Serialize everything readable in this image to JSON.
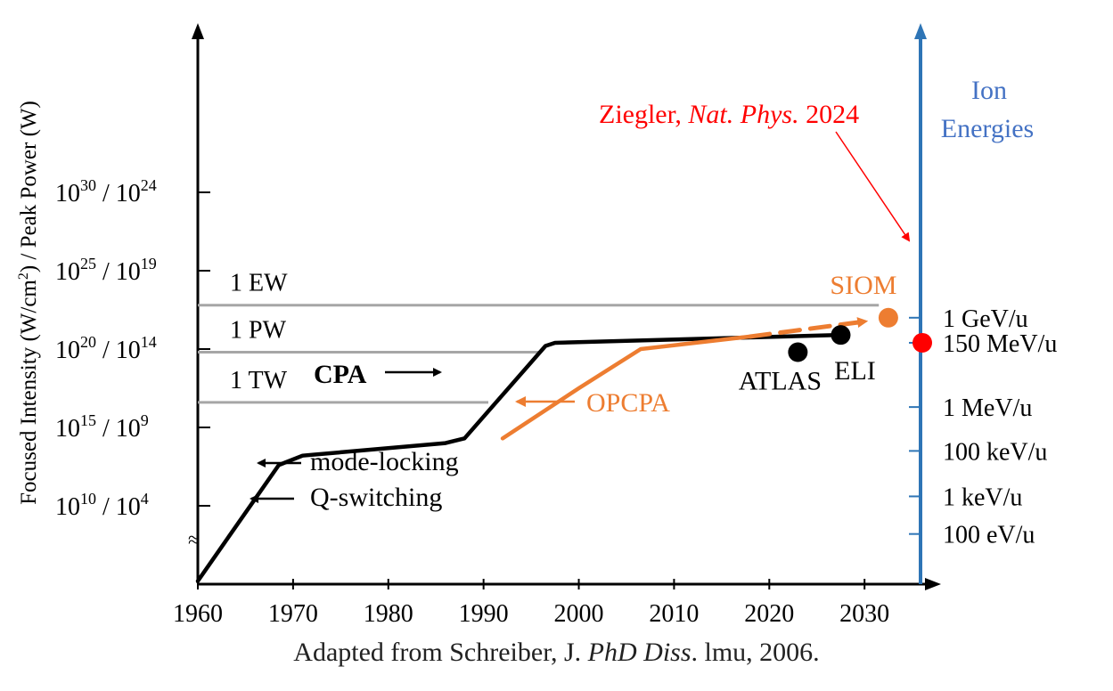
{
  "chart_data": {
    "type": "line",
    "xlim": [
      1960,
      2037
    ],
    "x_ticks": [
      1960,
      1970,
      1980,
      1990,
      2000,
      2010,
      2020,
      2030
    ],
    "ylim": [
      0,
      35
    ],
    "y_ticks": [
      {
        "y": 5,
        "label_base": "10",
        "label_exp": "10",
        "label_sep": " / ",
        "label_base2": "10",
        "label_exp2": "4"
      },
      {
        "y": 10,
        "label_base": "10",
        "label_exp": "15",
        "label_sep": " / ",
        "label_base2": "10",
        "label_exp2": "9"
      },
      {
        "y": 15,
        "label_base": "10",
        "label_exp": "20",
        "label_sep": " / ",
        "label_base2": "10",
        "label_exp2": "14"
      },
      {
        "y": 20,
        "label_base": "10",
        "label_exp": "25",
        "label_sep": " / ",
        "label_base2": "10",
        "label_exp2": "19"
      },
      {
        "y": 25,
        "label_base": "10",
        "label_exp": "30",
        "label_sep": " / ",
        "label_base2": "10",
        "label_exp2": "24"
      }
    ],
    "ylabel": {
      "a": "Focused Intensity (W/cm",
      "sup": "2",
      "b": ") / Peak Power (W)"
    },
    "axis_break_symbol": "≈",
    "power_levels": [
      {
        "label": "1 EW",
        "y": 17.8,
        "x_end": 2031.5
      },
      {
        "label": "1 PW",
        "y": 14.8,
        "x_end": 1996
      },
      {
        "label": "1 TW",
        "y": 11.6,
        "x_end": 1990.5
      }
    ],
    "series": [
      {
        "color": "#000000",
        "points": [
          [
            1960,
            0.2
          ],
          [
            1968.5,
            7.6
          ],
          [
            1971,
            8.2
          ],
          [
            1986,
            9.0
          ],
          [
            1988,
            9.3
          ],
          [
            1996.5,
            15.2
          ],
          [
            1997.5,
            15.4
          ],
          [
            2027.5,
            15.9
          ]
        ]
      },
      {
        "color": "#ed7d31",
        "points": [
          [
            1992,
            9.3
          ],
          [
            2000,
            12.5
          ],
          [
            2006.5,
            15.0
          ],
          [
            2018,
            15.8
          ]
        ]
      },
      {
        "color": "#ed7d31",
        "dashed": true,
        "points": [
          [
            2018,
            15.8
          ],
          [
            2031.5,
            17.0
          ]
        ]
      }
    ],
    "labeled_points": [
      {
        "label": "ELI",
        "x": 2027.5,
        "y": 15.9,
        "color": "#000000"
      },
      {
        "label": "ATLAS",
        "x": 2023,
        "y": 14.8,
        "color": "#000000"
      },
      {
        "label": "SIOM",
        "x": 2032.5,
        "y": 17.0,
        "color": "#ed7d31"
      }
    ],
    "annotations": [
      {
        "label": "mode-locking",
        "color": "#000000"
      },
      {
        "label": "Q-switching",
        "color": "#000000"
      },
      {
        "label": "CPA",
        "color": "#000000",
        "bold": true
      },
      {
        "label": "OPCPA",
        "color": "#ed7d31"
      }
    ],
    "secondary_axis": {
      "title_line1": "Ion",
      "title_line2": "Energies",
      "title_color": "#4472c4",
      "axis_color": "#2e75b6",
      "labels": [
        {
          "label": "1 GeV/u",
          "y": 17.0
        },
        {
          "label": "150 MeV/u",
          "y": 15.4
        },
        {
          "label": "1 MeV/u",
          "y": 11.3
        },
        {
          "label": "100 keV/u",
          "y": 8.5
        },
        {
          "label": "1 keV/u",
          "y": 5.6
        },
        {
          "label": "100 eV/u",
          "y": 3.2
        }
      ],
      "highlight": {
        "label": "150 MeV/u",
        "color": "#ff0000"
      }
    },
    "reference": {
      "author": "Ziegler, ",
      "journal": "Nat. Phys.",
      "year": " 2024",
      "color": "#ff0000"
    }
  },
  "caption": {
    "prefix": "Adapted from Schreiber, J. ",
    "italic": "PhD Diss",
    "suffix": ". lmu, 2006."
  }
}
